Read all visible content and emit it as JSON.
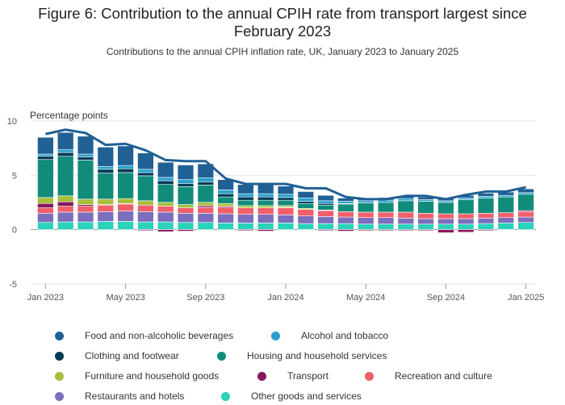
{
  "title": "Figure 6: Contribution to the annual CPIH rate from transport largest since February 2023",
  "subtitle": "Contributions to the annual CPIH inflation rate, UK, January 2023 to January 2025",
  "chart_data": {
    "type": "bar",
    "stacked": true,
    "ylabel": "Percentage points",
    "xlabel": "",
    "ylim": [
      -5,
      10
    ],
    "yticks": [
      10,
      5,
      0,
      -5
    ],
    "grid": true,
    "legend_position": "bottom",
    "categories": [
      "Jan 2023",
      "Feb 2023",
      "Mar 2023",
      "Apr 2023",
      "May 2023",
      "Jun 2023",
      "Jul 2023",
      "Aug 2023",
      "Sep 2023",
      "Oct 2023",
      "Nov 2023",
      "Dec 2023",
      "Jan 2024",
      "Feb 2024",
      "Mar 2024",
      "Apr 2024",
      "May 2024",
      "Jun 2024",
      "Jul 2024",
      "Aug 2024",
      "Sep 2024",
      "Oct 2024",
      "Nov 2024",
      "Dec 2024",
      "Jan 2025"
    ],
    "xtick_labels": [
      "Jan 2023",
      "May 2023",
      "Sep 2023",
      "Jan 2024",
      "May 2024",
      "Sep 2024",
      "Jan 2025"
    ],
    "series": [
      {
        "name": "Other goods and services",
        "color": "#28d3b9",
        "values": [
          0.65,
          0.7,
          0.7,
          0.75,
          0.75,
          0.7,
          0.7,
          0.65,
          0.65,
          0.6,
          0.6,
          0.6,
          0.6,
          0.55,
          0.55,
          0.55,
          0.5,
          0.5,
          0.5,
          0.5,
          0.5,
          0.5,
          0.55,
          0.6,
          0.65
        ]
      },
      {
        "name": "Restaurants and hotels",
        "color": "#7b6ebc",
        "values": [
          0.85,
          0.9,
          0.9,
          0.9,
          0.95,
          0.95,
          0.9,
          0.85,
          0.85,
          0.85,
          0.8,
          0.8,
          0.75,
          0.7,
          0.65,
          0.6,
          0.6,
          0.6,
          0.55,
          0.5,
          0.5,
          0.5,
          0.5,
          0.5,
          0.5
        ]
      },
      {
        "name": "Recreation and culture",
        "color": "#f15f6a",
        "values": [
          0.5,
          0.55,
          0.55,
          0.6,
          0.65,
          0.6,
          0.55,
          0.5,
          0.55,
          0.6,
          0.6,
          0.6,
          0.65,
          0.6,
          0.55,
          0.5,
          0.5,
          0.5,
          0.55,
          0.5,
          0.45,
          0.45,
          0.45,
          0.45,
          0.5
        ]
      },
      {
        "name": "Transport",
        "color": "#871a5b",
        "values": [
          0.4,
          0.4,
          0.15,
          0.05,
          0.05,
          -0.1,
          -0.2,
          -0.15,
          0.15,
          0.1,
          -0.1,
          -0.15,
          0.05,
          -0.05,
          -0.1,
          -0.15,
          -0.1,
          -0.1,
          -0.1,
          -0.1,
          -0.3,
          -0.25,
          -0.1,
          -0.05,
          0.1
        ]
      },
      {
        "name": "Furniture and household goods",
        "color": "#a8bd3a",
        "values": [
          0.55,
          0.55,
          0.5,
          0.5,
          0.45,
          0.4,
          0.35,
          0.3,
          0.3,
          0.25,
          0.2,
          0.2,
          0.15,
          0.1,
          0.05,
          0.0,
          -0.05,
          -0.05,
          -0.05,
          -0.05,
          -0.05,
          -0.05,
          -0.05,
          -0.05,
          0.0
        ]
      },
      {
        "name": "Housing and household services",
        "color": "#118c7b",
        "values": [
          3.5,
          3.65,
          3.6,
          2.4,
          2.4,
          2.3,
          1.65,
          1.65,
          1.6,
          0.6,
          0.5,
          0.5,
          0.5,
          0.45,
          0.45,
          0.7,
          0.85,
          0.9,
          1.05,
          1.1,
          1.05,
          1.3,
          1.4,
          1.45,
          1.5
        ]
      },
      {
        "name": "Clothing and footwear",
        "color": "#003c57",
        "values": [
          0.3,
          0.35,
          0.3,
          0.35,
          0.35,
          0.3,
          0.35,
          0.3,
          0.3,
          0.3,
          0.3,
          0.3,
          0.25,
          0.2,
          0.15,
          0.05,
          0.0,
          0.0,
          0.0,
          0.0,
          0.0,
          0.0,
          0.0,
          0.0,
          0.0
        ]
      },
      {
        "name": "Alcohol and tobacco",
        "color": "#27a0cc",
        "values": [
          0.2,
          0.25,
          0.25,
          0.25,
          0.3,
          0.3,
          0.3,
          0.35,
          0.35,
          0.35,
          0.3,
          0.3,
          0.3,
          0.3,
          0.25,
          0.2,
          0.2,
          0.2,
          0.2,
          0.15,
          0.15,
          0.15,
          0.15,
          0.15,
          0.15
        ]
      },
      {
        "name": "Food and non-alcoholic beverages",
        "color": "#206095",
        "values": [
          1.55,
          1.6,
          1.65,
          1.8,
          1.8,
          1.5,
          1.4,
          1.35,
          1.3,
          0.95,
          0.85,
          0.85,
          0.75,
          0.6,
          0.5,
          0.3,
          0.25,
          0.25,
          0.25,
          0.25,
          0.2,
          0.25,
          0.3,
          0.3,
          0.35
        ]
      }
    ],
    "total": {
      "color": "#206095",
      "values": [
        8.8,
        9.2,
        8.9,
        7.8,
        7.9,
        7.3,
        6.4,
        6.3,
        6.3,
        4.7,
        4.2,
        4.2,
        4.2,
        3.8,
        3.8,
        3.0,
        2.8,
        2.8,
        3.1,
        3.1,
        2.8,
        3.2,
        3.5,
        3.5,
        3.9
      ]
    },
    "legend_order": [
      "Food and non-alcoholic beverages",
      "Alcohol and tobacco",
      "Clothing and footwear",
      "Housing and household services",
      "Furniture and household goods",
      "Transport",
      "Recreation and culture",
      "Restaurants and hotels",
      "Other goods and services"
    ]
  }
}
